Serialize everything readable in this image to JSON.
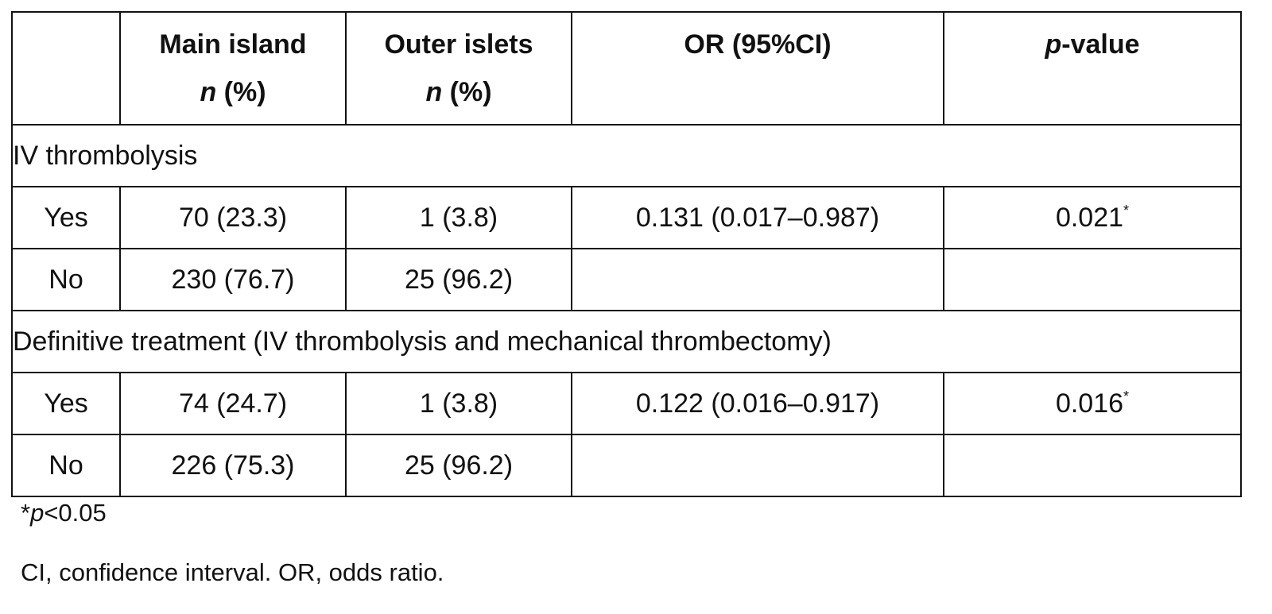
{
  "table": {
    "headers": {
      "col0": "",
      "col1_line1": "Main island",
      "col1_n": "n",
      "col1_pct": " (%)",
      "col2_line1": "Outer islets",
      "col2_n": "n",
      "col2_pct": " (%)",
      "col3": "OR (95%CI)",
      "col4_p": "p",
      "col4_rest": "-value"
    },
    "sections": [
      {
        "title": "IV thrombolysis",
        "rows": [
          {
            "label": "Yes",
            "main": "70 (23.3)",
            "outer": "1 (3.8)",
            "or": "0.131 (0.017–0.987)",
            "p": "0.021",
            "sig": "*"
          },
          {
            "label": "No",
            "main": "230 (76.7)",
            "outer": "25 (96.2)",
            "or": "",
            "p": "",
            "sig": ""
          }
        ]
      },
      {
        "title": "Definitive treatment (IV thrombolysis and mechanical thrombectomy)",
        "rows": [
          {
            "label": "Yes",
            "main": "74 (24.7)",
            "outer": "1 (3.8)",
            "or": "0.122 (0.016–0.917)",
            "p": "0.016",
            "sig": "*"
          },
          {
            "label": "No",
            "main": "226 (75.3)",
            "outer": "25 (96.2)",
            "or": "",
            "p": "",
            "sig": ""
          }
        ]
      }
    ]
  },
  "footnotes": {
    "sig_star": "*",
    "sig_p": "p",
    "sig_rest": "<0.05",
    "abbreviations": "CI, confidence interval. OR, odds ratio."
  }
}
